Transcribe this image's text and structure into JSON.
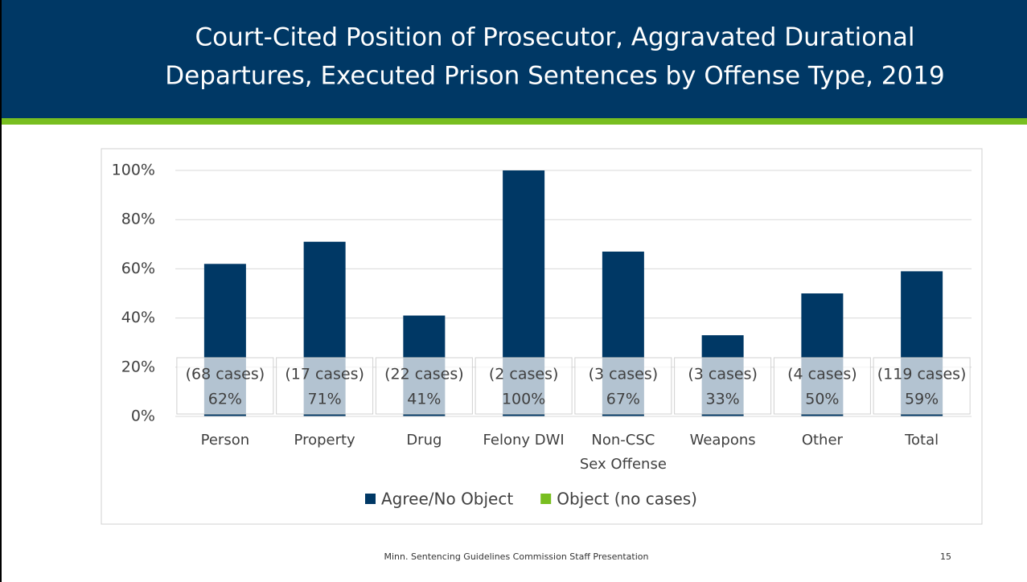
{
  "header": {
    "title_lines": [
      "Court-Cited Position of Prosecutor, Aggravated Durational",
      "Departures, Executed Prison Sentences by Offense Type, 2019"
    ]
  },
  "chart_data": {
    "type": "bar",
    "categories": [
      [
        "Person"
      ],
      [
        "Property"
      ],
      [
        "Drug"
      ],
      [
        "Felony DWI"
      ],
      [
        "Non-CSC",
        "Sex Offense"
      ],
      [
        "Weapons"
      ],
      [
        "Other"
      ],
      [
        "Total"
      ]
    ],
    "series": [
      {
        "name": "Agree/No Object",
        "color": "#003865",
        "values": [
          62,
          71,
          41,
          100,
          67,
          33,
          50,
          59
        ],
        "value_labels": [
          "62%",
          "71%",
          "41%",
          "100%",
          "67%",
          "33%",
          "50%",
          "59%"
        ]
      },
      {
        "name": "Object (no cases)",
        "color": "#78be20",
        "values": [
          0,
          0,
          0,
          0,
          0,
          0,
          0,
          0
        ]
      }
    ],
    "case_labels": [
      "(68 cases)",
      "(17 cases)",
      "(22 cases)",
      "(2 cases)",
      "(3 cases)",
      "(3 cases)",
      "(4 cases)",
      "(119 cases)"
    ],
    "ylim": [
      0,
      100
    ],
    "yticks": [
      {
        "value": 0,
        "label": "0%"
      },
      {
        "value": 20,
        "label": "20%"
      },
      {
        "value": 40,
        "label": "40%"
      },
      {
        "value": 60,
        "label": "60%"
      },
      {
        "value": 80,
        "label": "80%"
      },
      {
        "value": 100,
        "label": "100%"
      }
    ],
    "grid": true
  },
  "footer": {
    "text": "Minn. Sentencing Guidelines Commission Staff Presentation",
    "page": "15"
  }
}
